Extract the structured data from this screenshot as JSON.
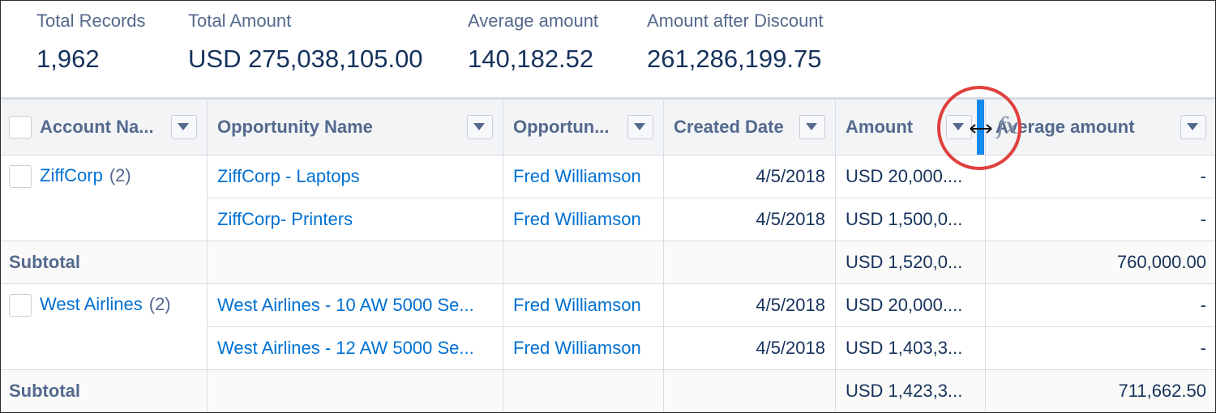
{
  "summary": [
    {
      "label": "Total Records",
      "value": "1,962"
    },
    {
      "label": "Total Amount",
      "value": "USD 275,038,105.00"
    },
    {
      "label": "Average amount",
      "value": "140,182.52"
    },
    {
      "label": "Amount after Discount",
      "value": "261,286,199.75"
    }
  ],
  "table": {
    "columns": [
      "Account Na...",
      "Opportunity Name",
      "Opportun...",
      "Created Date",
      "Amount",
      "Average amount"
    ],
    "formula_icon": "fx",
    "groups": [
      {
        "account": "ZiffCorp",
        "count": "(2)",
        "rows": [
          [
            "ZiffCorp - Laptops",
            "Fred Williamson",
            "4/5/2018",
            "USD 20,000....",
            "-"
          ],
          [
            "ZiffCorp- Printers",
            "Fred Williamson",
            "4/5/2018",
            "USD 1,500,0...",
            "-"
          ]
        ],
        "subtotal": {
          "label": "Subtotal",
          "amount": "USD 1,520,0...",
          "average": "760,000.00"
        }
      },
      {
        "account": "West Airlines",
        "count": "(2)",
        "rows": [
          [
            "West Airlines - 10 AW 5000 Se...",
            "Fred Williamson",
            "4/5/2018",
            "USD 20,000....",
            "-"
          ],
          [
            "West Airlines - 12 AW 5000 Se...",
            "Fred Williamson",
            "4/5/2018",
            "USD 1,403,3...",
            "-"
          ]
        ],
        "subtotal": {
          "label": "Subtotal",
          "amount": "USD 1,423,3...",
          "average": "711,662.50"
        }
      }
    ]
  }
}
